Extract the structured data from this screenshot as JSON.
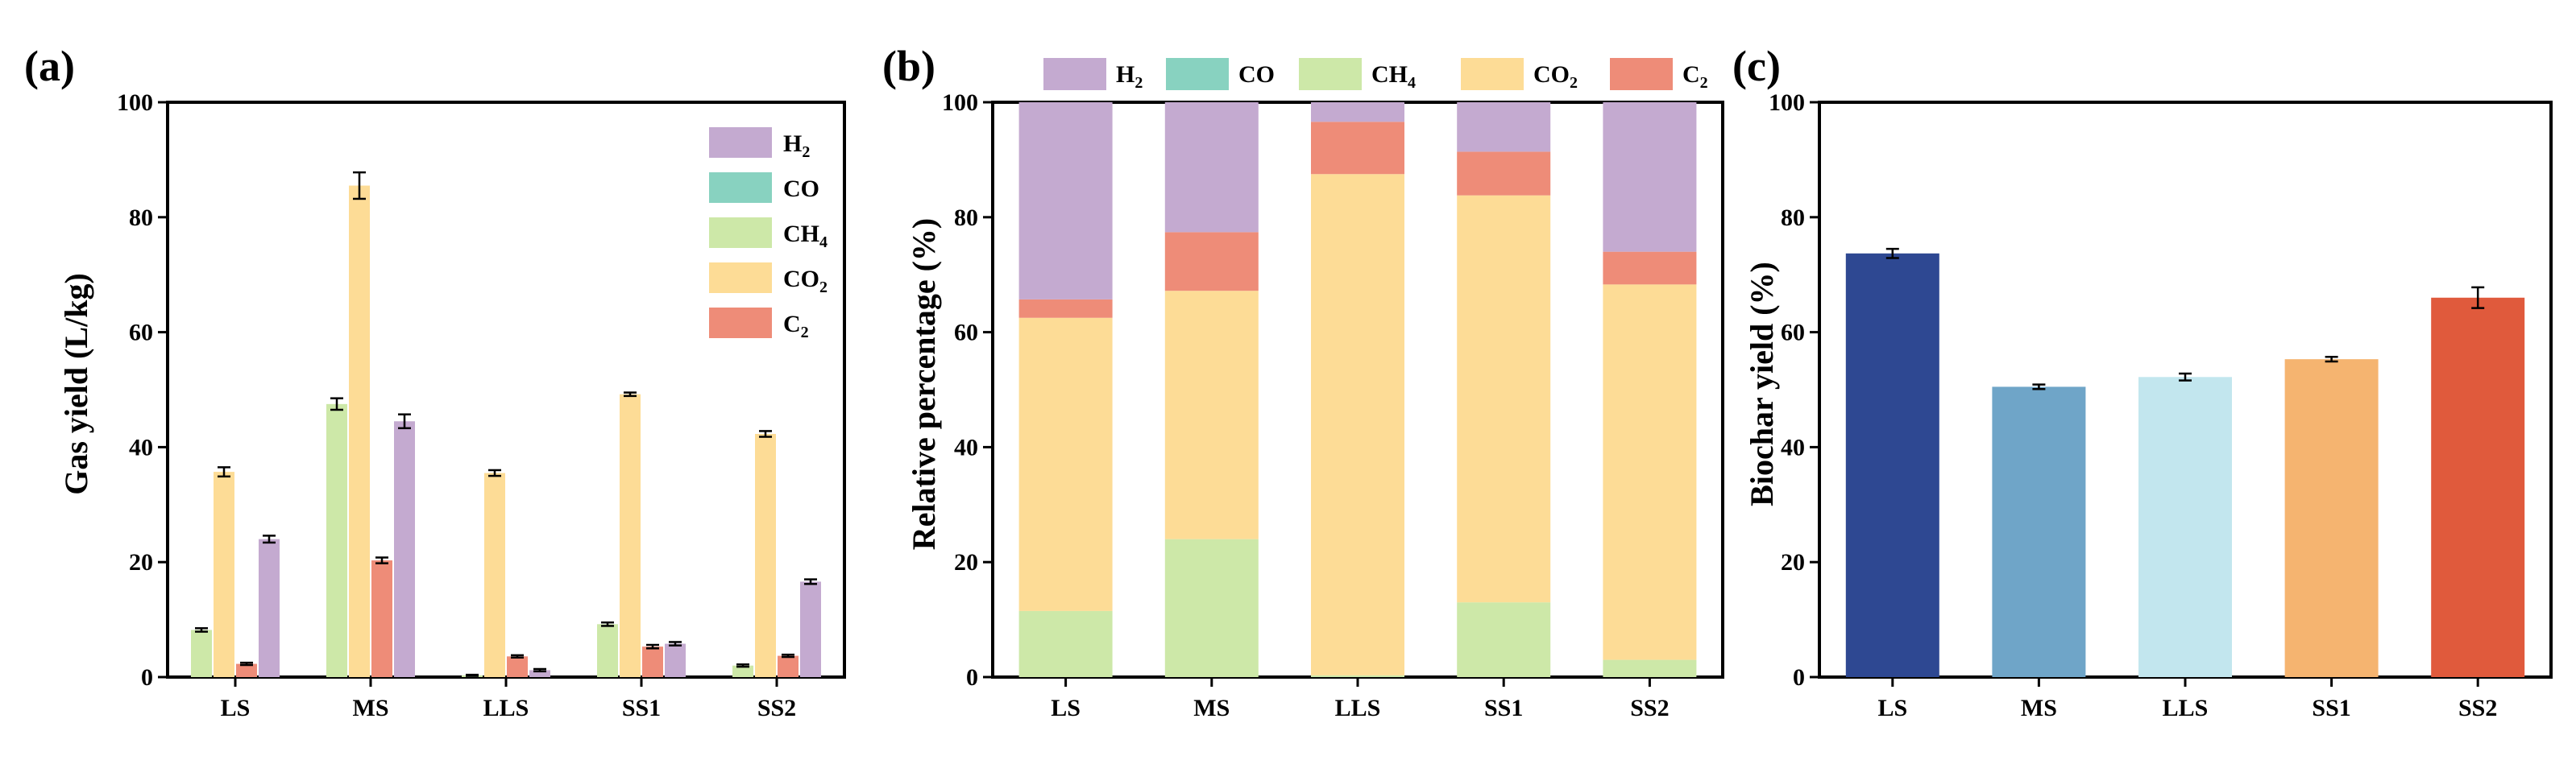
{
  "colors": {
    "H2": "#c4aad0",
    "CO": "#88d2c0",
    "CH4": "#cde8a8",
    "CO2": "#fddc96",
    "C2": "#ee8c78",
    "LS": "#2e4892",
    "MS": "#6fa5c8",
    "LLS": "#c2e6ee",
    "SS1": "#f5b470",
    "SS2": "#e05a3c"
  },
  "legend": [
    {
      "key": "H2",
      "main": "H",
      "sub": "2"
    },
    {
      "key": "CO",
      "main": "CO",
      "sub": ""
    },
    {
      "key": "CH4",
      "main": "CH",
      "sub": "4"
    },
    {
      "key": "CO2",
      "main": "CO",
      "sub": "2"
    },
    {
      "key": "C2",
      "main": "C",
      "sub": "2"
    }
  ],
  "chart_data": [
    {
      "panel": "(a)",
      "type": "bar",
      "ylabel": "Gas yield (L/kg)",
      "xlabel": "",
      "ylim": [
        0,
        100
      ],
      "yticks": [
        0,
        20,
        40,
        60,
        80,
        100
      ],
      "categories": [
        "LS",
        "MS",
        "LLS",
        "SS1",
        "SS2"
      ],
      "legend_position": "top-right",
      "series": [
        {
          "name": "H2",
          "values": [
            24.0,
            44.5,
            1.2,
            5.8,
            16.6
          ],
          "errors": [
            0.6,
            1.2,
            0.2,
            0.3,
            0.4
          ]
        },
        {
          "name": "CO",
          "values": [
            0,
            0,
            0,
            0,
            0
          ],
          "errors": [
            0,
            0,
            0,
            0,
            0
          ]
        },
        {
          "name": "CH4",
          "values": [
            8.2,
            47.5,
            0.3,
            9.2,
            2.0
          ],
          "errors": [
            0.3,
            1.0,
            0.1,
            0.3,
            0.2
          ]
        },
        {
          "name": "CO2",
          "values": [
            35.7,
            85.5,
            35.5,
            49.2,
            42.3
          ],
          "errors": [
            0.8,
            2.3,
            0.5,
            0.3,
            0.5
          ]
        },
        {
          "name": "C2",
          "values": [
            2.3,
            20.3,
            3.6,
            5.3,
            3.7
          ],
          "errors": [
            0.2,
            0.5,
            0.2,
            0.3,
            0.2
          ]
        }
      ]
    },
    {
      "panel": "(b)",
      "type": "stacked-bar",
      "ylabel": "Relative percentage (%)",
      "xlabel": "",
      "ylim": [
        0,
        100
      ],
      "yticks": [
        0,
        20,
        40,
        60,
        80,
        100
      ],
      "categories": [
        "LS",
        "MS",
        "LLS",
        "SS1",
        "SS2"
      ],
      "legend_position": "top",
      "series": [
        {
          "name": "CH4",
          "values": [
            11.5,
            24.0,
            0.3,
            13.0,
            3.0
          ]
        },
        {
          "name": "CO2",
          "values": [
            51.0,
            43.2,
            87.2,
            70.8,
            65.3
          ]
        },
        {
          "name": "C2",
          "values": [
            3.2,
            10.2,
            9.1,
            7.6,
            5.7
          ]
        },
        {
          "name": "CO",
          "values": [
            0,
            0,
            0,
            0,
            0
          ]
        },
        {
          "name": "H2",
          "values": [
            34.3,
            22.6,
            3.4,
            8.6,
            26.0
          ]
        }
      ]
    },
    {
      "panel": "(c)",
      "type": "bar",
      "ylabel": "Biochar yield (%)",
      "xlabel": "",
      "ylim": [
        0,
        100
      ],
      "yticks": [
        0,
        20,
        40,
        60,
        80,
        100
      ],
      "categories": [
        "LS",
        "MS",
        "LLS",
        "SS1",
        "SS2"
      ],
      "values": [
        73.7,
        50.5,
        52.2,
        55.3,
        66.0
      ],
      "errors": [
        0.8,
        0.4,
        0.6,
        0.4,
        1.8
      ]
    }
  ]
}
